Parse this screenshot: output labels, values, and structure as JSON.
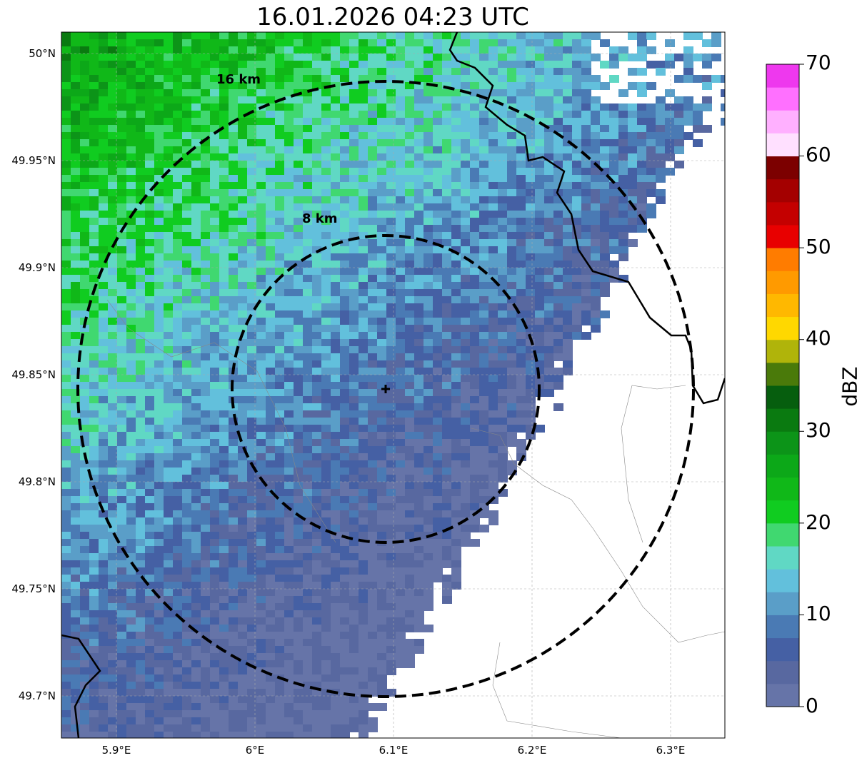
{
  "title": "16.01.2026 04:23 UTC",
  "lat_ticks": [
    "50°N",
    "49.95°N",
    "49.9°N",
    "49.85°N",
    "49.8°N",
    "49.75°N",
    "49.7°N"
  ],
  "lon_ticks": [
    "5.9°E",
    "6°E",
    "6.1°E",
    "6.2°E",
    "6.3°E"
  ],
  "rings": {
    "outer_label": "16 km",
    "inner_label": "8 km"
  },
  "colorbar": {
    "label": "dBZ",
    "ticks": [
      "0",
      "10",
      "20",
      "30",
      "40",
      "50",
      "60",
      "70"
    ],
    "colors": [
      "#6674a8",
      "#5868a0",
      "#4560a4",
      "#4a7ab4",
      "#5a9ec8",
      "#62c0dc",
      "#60d8c4",
      "#40d870",
      "#10cc20",
      "#10b818",
      "#0ca818",
      "#0c9418",
      "#0a7a10",
      "#065e0e",
      "#4a7a0a",
      "#b0b40a",
      "#ffd800",
      "#ffb800",
      "#ff9a00",
      "#ff7c00",
      "#e80000",
      "#c40000",
      "#a40000",
      "#7c0000",
      "#ffe0ff",
      "#ffb0ff",
      "#ff70ff",
      "#ee38ee"
    ]
  }
}
